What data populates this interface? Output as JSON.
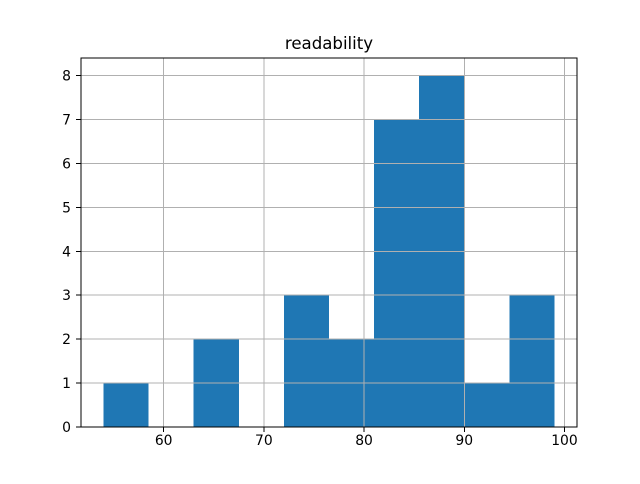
{
  "chart_data": {
    "type": "bar",
    "subtype": "histogram",
    "title": "readability",
    "xlabel": "",
    "ylabel": "",
    "bin_edges": [
      54,
      58.5,
      63,
      67.5,
      72,
      76.5,
      81,
      85.5,
      90,
      94.5,
      99
    ],
    "counts": [
      1,
      0,
      2,
      0,
      3,
      2,
      7,
      8,
      1,
      3
    ],
    "xlim": [
      51.75,
      101.25
    ],
    "ylim": [
      0,
      8.4
    ],
    "xticks": [
      60,
      70,
      80,
      90,
      100
    ],
    "yticks": [
      0,
      1,
      2,
      3,
      4,
      5,
      6,
      7,
      8
    ],
    "grid": true,
    "grid_above_bars": true,
    "legend": "none",
    "bar_color": "#1f77b4",
    "grid_color": "#b0b0b0",
    "spine_color": "#000000",
    "tick_color": "#000000",
    "background_color": "#ffffff"
  }
}
